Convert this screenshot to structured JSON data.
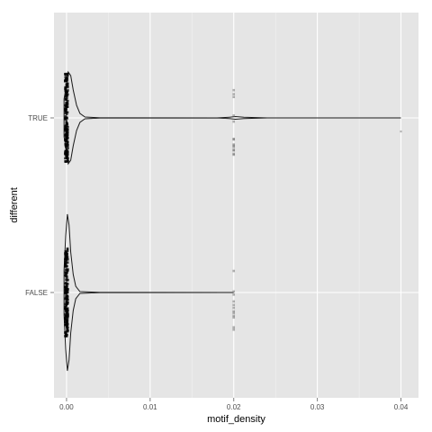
{
  "chart_data": {
    "type": "violin",
    "orientation": "horizontal",
    "title": "",
    "xlabel": "motif_density",
    "ylabel": "different",
    "xlim": [
      -0.0015,
      0.0421
    ],
    "x_ticks": [
      0.0,
      0.01,
      0.02,
      0.03,
      0.04
    ],
    "x_tick_labels": [
      "0.00",
      "0.01",
      "0.02",
      "0.03",
      "0.04"
    ],
    "categories": [
      "TRUE",
      "FALSE"
    ],
    "grid": true,
    "legend": "none",
    "panel_color": "#e5e5e5",
    "grid_color": "#ffffff",
    "line_color": "#1a1a1a",
    "point_color": "#000000",
    "series": [
      {
        "name": "TRUE",
        "range": [
          0.0,
          0.04
        ],
        "points": [
          {
            "x": 0.0,
            "count": 180
          },
          {
            "x": 0.02,
            "count": 14
          },
          {
            "x": 0.04,
            "count": 1
          }
        ]
      },
      {
        "name": "FALSE",
        "range": [
          0.0,
          0.02
        ],
        "points": [
          {
            "x": 0.0,
            "count": 180
          },
          {
            "x": 0.02,
            "count": 12
          }
        ]
      }
    ]
  }
}
